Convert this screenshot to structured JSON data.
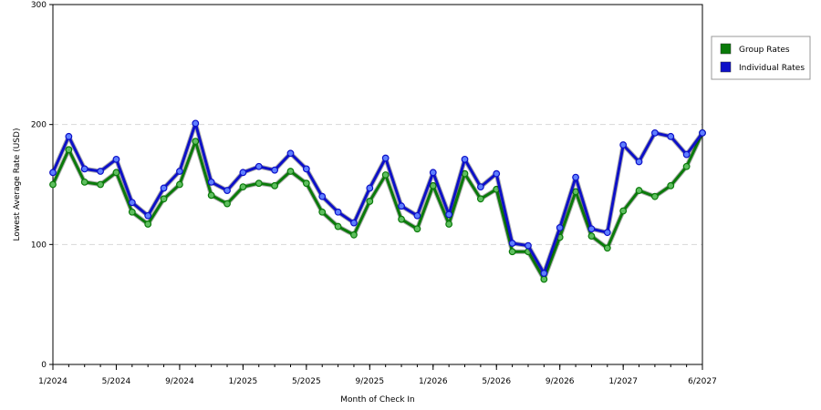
{
  "chart_data": {
    "type": "line",
    "xlabel": "Month of Check In",
    "ylabel": "Lowest Average Rate (USD)",
    "ylim": [
      0,
      300
    ],
    "yticks": [
      "0",
      "100",
      "200",
      "300"
    ],
    "xticks": [
      "1/2024",
      "5/2024",
      "9/2024",
      "1/2025",
      "5/2025",
      "9/2025",
      "1/2026",
      "5/2026",
      "9/2026",
      "1/2027",
      "6/2027"
    ],
    "x": [
      "1/2024",
      "2/2024",
      "3/2024",
      "4/2024",
      "5/2024",
      "6/2024",
      "7/2024",
      "8/2024",
      "9/2024",
      "10/2024",
      "11/2024",
      "12/2024",
      "1/2025",
      "2/2025",
      "3/2025",
      "4/2025",
      "5/2025",
      "6/2025",
      "7/2025",
      "8/2025",
      "9/2025",
      "10/2025",
      "11/2025",
      "12/2025",
      "1/2026",
      "2/2026",
      "3/2026",
      "4/2026",
      "5/2026",
      "6/2026",
      "7/2026",
      "8/2026",
      "9/2026",
      "10/2026",
      "11/2026",
      "12/2026",
      "1/2027",
      "2/2027",
      "3/2027",
      "4/2027",
      "5/2027",
      "6/2027"
    ],
    "grid": true,
    "legend_position": "right",
    "series": [
      {
        "name": "Group Rates",
        "color": "#0a7a0a",
        "values": [
          150,
          179,
          152,
          150,
          160,
          127,
          117,
          138,
          150,
          186,
          141,
          134,
          148,
          151,
          149,
          161,
          151,
          127,
          115,
          108,
          136,
          158,
          121,
          113,
          149,
          117,
          159,
          138,
          146,
          94,
          94,
          71,
          106,
          144,
          107,
          97,
          128,
          145,
          140,
          149,
          165,
          193
        ]
      },
      {
        "name": "Individual Rates",
        "color": "#0d10c8",
        "values": [
          160,
          190,
          163,
          161,
          171,
          135,
          124,
          147,
          161,
          201,
          152,
          145,
          160,
          165,
          162,
          176,
          163,
          140,
          127,
          118,
          147,
          172,
          132,
          124,
          160,
          125,
          171,
          148,
          159,
          101,
          99,
          76,
          114,
          156,
          113,
          110,
          183,
          169,
          193,
          190,
          175,
          193
        ]
      }
    ]
  }
}
